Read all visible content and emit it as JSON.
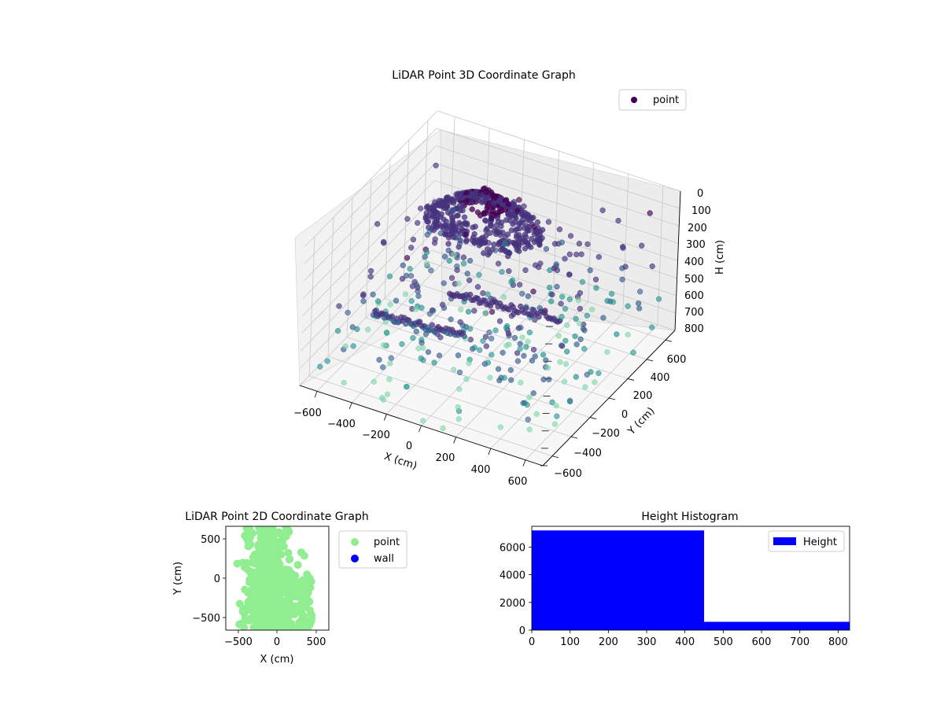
{
  "chart_data": [
    {
      "type": "scatter",
      "title": "LiDAR Point 3D Coordinate Graph",
      "xlabel": "X (cm)",
      "ylabel": "Y (cm)",
      "zlabel": "H (cm)",
      "xlim": [
        -700,
        700
      ],
      "ylim": [
        -700,
        700
      ],
      "zlim": [
        0,
        800
      ],
      "z_inverted": true,
      "xticks": [
        "−600",
        "−400",
        "−200",
        "0",
        "200",
        "400",
        "600"
      ],
      "yticks": [
        "−600",
        "−400",
        "−200",
        "0",
        "200",
        "400",
        "600"
      ],
      "zticks": [
        "0",
        "100",
        "200",
        "300",
        "400",
        "500",
        "600",
        "700",
        "800"
      ],
      "legend": [
        {
          "label": "point",
          "color": "#440154"
        }
      ],
      "legend_position": "top-right",
      "colormap": "viridis",
      "series": [
        {
          "name": "point",
          "description_ref": "3d_points"
        }
      ],
      "grid": true
    },
    {
      "type": "scatter",
      "title": "LiDAR Point 2D Coordinate Graph",
      "xlabel": "X (cm)",
      "ylabel": "Y (cm)",
      "xlim": [
        -650,
        650
      ],
      "ylim": [
        -650,
        650
      ],
      "xticks": [
        "−500",
        "0",
        "500"
      ],
      "yticks": [
        "500",
        "0",
        "−500"
      ],
      "legend": [
        {
          "label": "point",
          "color": "#90ee90"
        },
        {
          "label": "wall",
          "color": "#0000ff"
        }
      ],
      "legend_position": "outside-right"
    },
    {
      "type": "bar",
      "title": "Height Histogram",
      "bins": [
        [
          0,
          450
        ],
        [
          450,
          830
        ]
      ],
      "values": [
        7200,
        600
      ],
      "xlim": [
        0,
        830
      ],
      "ylim": [
        0,
        7500
      ],
      "xticks": [
        "0",
        "100",
        "200",
        "300",
        "400",
        "500",
        "600",
        "700",
        "800"
      ],
      "yticks": [
        "0",
        "2000",
        "4000",
        "6000"
      ],
      "legend": [
        {
          "label": "Height",
          "color": "#0000ff"
        }
      ],
      "legend_position": "top-right",
      "bar_color": "#0000ff"
    }
  ]
}
